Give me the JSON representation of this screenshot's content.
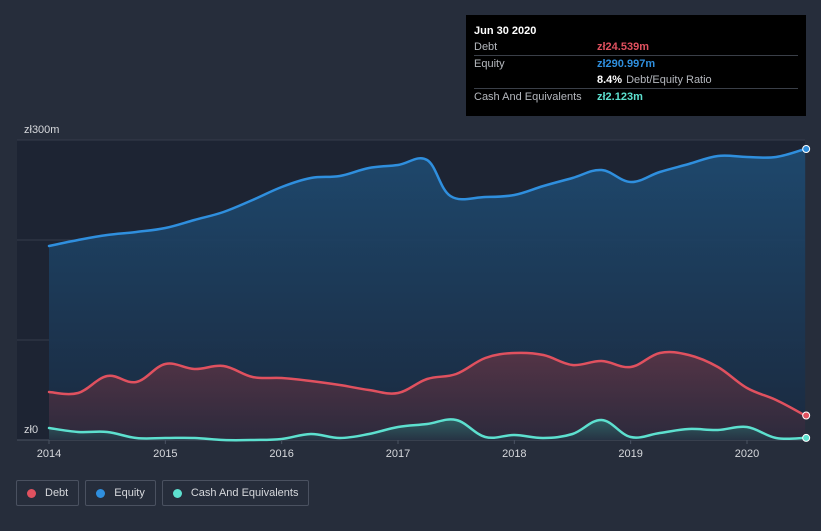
{
  "colors": {
    "background": "#262d3b",
    "debt": "#e0515f",
    "equity": "#2f8fde",
    "cash": "#5de0cf",
    "grid": "#3b4252",
    "axis_text": "#d6d8dc"
  },
  "tooltip": {
    "date": "Jun 30 2020",
    "rows": [
      {
        "label": "Debt",
        "value": "zł24.539m",
        "color": "#e0515f"
      },
      {
        "label": "Equity",
        "value": "zł290.997m",
        "color": "#2f8fde"
      },
      {
        "label": "",
        "value": "8.4%",
        "extra": "Debt/Equity Ratio",
        "color": "#ffffff"
      },
      {
        "label": "Cash And Equivalents",
        "value": "zł2.123m",
        "color": "#5de0cf"
      }
    ]
  },
  "legend": [
    {
      "label": "Debt",
      "color": "#e0515f"
    },
    {
      "label": "Equity",
      "color": "#2f8fde"
    },
    {
      "label": "Cash And Equivalents",
      "color": "#5de0cf"
    }
  ],
  "chart_data": {
    "type": "area",
    "title": "",
    "xlabel": "",
    "ylabel": "",
    "y_top_label": "zł300m",
    "y_bottom_label": "zł0",
    "ylim": [
      0,
      300
    ],
    "xlim": [
      2014.0,
      2020.5
    ],
    "x_ticks": [
      "2014",
      "2015",
      "2016",
      "2017",
      "2018",
      "2019",
      "2020"
    ],
    "grid": true,
    "series": [
      {
        "name": "Equity",
        "color": "#2f8fde",
        "points": [
          [
            2014.0,
            194
          ],
          [
            2014.25,
            200
          ],
          [
            2014.5,
            205
          ],
          [
            2014.75,
            208
          ],
          [
            2015.0,
            212
          ],
          [
            2015.25,
            220
          ],
          [
            2015.5,
            228
          ],
          [
            2015.75,
            240
          ],
          [
            2016.0,
            253
          ],
          [
            2016.25,
            262
          ],
          [
            2016.5,
            264
          ],
          [
            2016.75,
            272
          ],
          [
            2017.0,
            275
          ],
          [
            2017.25,
            280
          ],
          [
            2017.45,
            244
          ],
          [
            2017.75,
            243
          ],
          [
            2018.0,
            245
          ],
          [
            2018.25,
            254
          ],
          [
            2018.5,
            262
          ],
          [
            2018.75,
            270
          ],
          [
            2019.0,
            258
          ],
          [
            2019.25,
            268
          ],
          [
            2019.5,
            276
          ],
          [
            2019.75,
            284
          ],
          [
            2020.0,
            283
          ],
          [
            2020.25,
            283
          ],
          [
            2020.5,
            291
          ]
        ]
      },
      {
        "name": "Debt",
        "color": "#e0515f",
        "points": [
          [
            2014.0,
            48
          ],
          [
            2014.25,
            47
          ],
          [
            2014.5,
            64
          ],
          [
            2014.75,
            58
          ],
          [
            2015.0,
            76
          ],
          [
            2015.25,
            71
          ],
          [
            2015.5,
            74
          ],
          [
            2015.75,
            63
          ],
          [
            2016.0,
            62
          ],
          [
            2016.25,
            59
          ],
          [
            2016.5,
            55
          ],
          [
            2016.75,
            50
          ],
          [
            2017.0,
            47
          ],
          [
            2017.25,
            61
          ],
          [
            2017.5,
            66
          ],
          [
            2017.75,
            82
          ],
          [
            2018.0,
            87
          ],
          [
            2018.25,
            85
          ],
          [
            2018.5,
            75
          ],
          [
            2018.75,
            79
          ],
          [
            2019.0,
            73
          ],
          [
            2019.25,
            87
          ],
          [
            2019.5,
            85
          ],
          [
            2019.75,
            73
          ],
          [
            2020.0,
            52
          ],
          [
            2020.25,
            40
          ],
          [
            2020.5,
            24.5
          ]
        ]
      },
      {
        "name": "Cash And Equivalents",
        "color": "#5de0cf",
        "points": [
          [
            2014.0,
            12
          ],
          [
            2014.25,
            8
          ],
          [
            2014.5,
            8
          ],
          [
            2014.75,
            2
          ],
          [
            2015.0,
            2
          ],
          [
            2015.25,
            2
          ],
          [
            2015.5,
            0
          ],
          [
            2015.75,
            0
          ],
          [
            2016.0,
            1
          ],
          [
            2016.25,
            6
          ],
          [
            2016.5,
            2
          ],
          [
            2016.75,
            6
          ],
          [
            2017.0,
            13
          ],
          [
            2017.25,
            16
          ],
          [
            2017.5,
            20
          ],
          [
            2017.75,
            3
          ],
          [
            2018.0,
            5
          ],
          [
            2018.25,
            2
          ],
          [
            2018.5,
            6
          ],
          [
            2018.75,
            20
          ],
          [
            2019.0,
            3
          ],
          [
            2019.25,
            7
          ],
          [
            2019.5,
            11
          ],
          [
            2019.75,
            10
          ],
          [
            2020.0,
            13
          ],
          [
            2020.25,
            2
          ],
          [
            2020.5,
            2.1
          ]
        ]
      }
    ]
  }
}
